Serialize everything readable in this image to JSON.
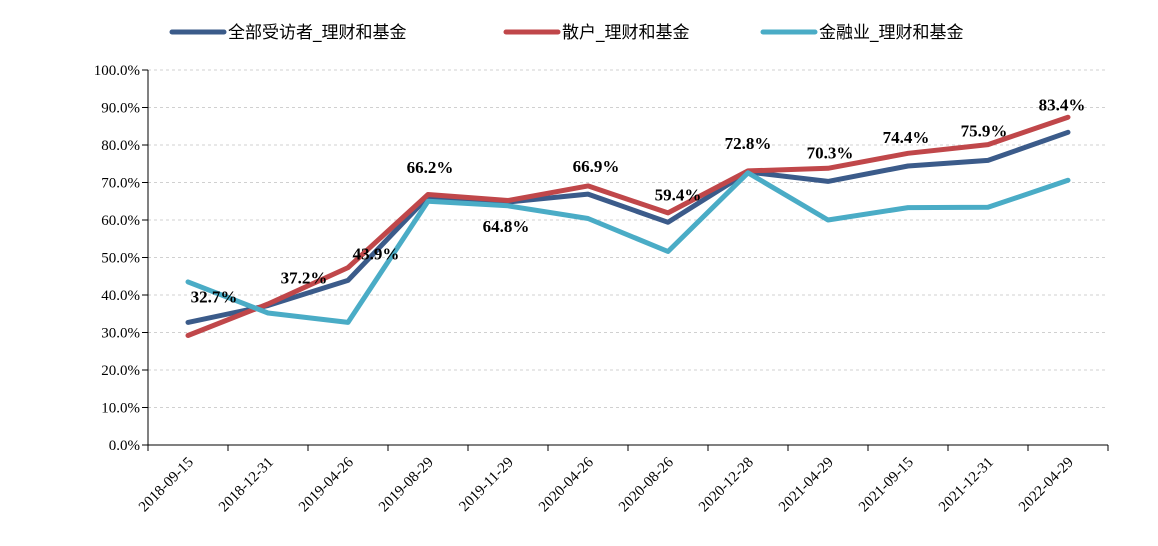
{
  "chart_data": {
    "type": "line",
    "title": "",
    "xlabel": "",
    "ylabel": "",
    "ylim": [
      0,
      100
    ],
    "yticks": [
      "0.0%",
      "10.0%",
      "20.0%",
      "30.0%",
      "40.0%",
      "50.0%",
      "60.0%",
      "70.0%",
      "80.0%",
      "90.0%",
      "100.0%"
    ],
    "grid": "horizontal-dashed",
    "legend_position": "top",
    "categories": [
      "2018-09-15",
      "2018-12-31",
      "2019-04-26",
      "2019-08-29",
      "2019-11-29",
      "2020-04-26",
      "2020-08-26",
      "2020-12-28",
      "2021-04-29",
      "2021-09-15",
      "2021-12-31",
      "2022-04-29"
    ],
    "series": [
      {
        "name": "全部受访者_理财和基金",
        "color": "#3b5b8a",
        "values": [
          32.7,
          37.2,
          43.9,
          66.2,
          64.8,
          66.9,
          59.4,
          72.8,
          70.3,
          74.4,
          75.9,
          83.4
        ],
        "labels": [
          "32.7%",
          "37.2%",
          "43.9%",
          "66.2%",
          "64.8%",
          "66.9%",
          "59.4%",
          "72.8%",
          "70.3%",
          "74.4%",
          "75.9%",
          "83.4%"
        ]
      },
      {
        "name": "散户_理财和基金",
        "color": "#c0474a",
        "values": [
          29.2,
          37.6,
          47.3,
          66.8,
          65.2,
          69.1,
          61.9,
          73.1,
          73.8,
          77.8,
          80.1,
          87.4
        ]
      },
      {
        "name": "金融业_理财和基金",
        "color": "#4aacc6",
        "values": [
          43.5,
          35.2,
          32.7,
          65.0,
          63.8,
          60.4,
          51.6,
          72.6,
          60.0,
          63.3,
          63.4,
          70.6
        ]
      }
    ]
  }
}
